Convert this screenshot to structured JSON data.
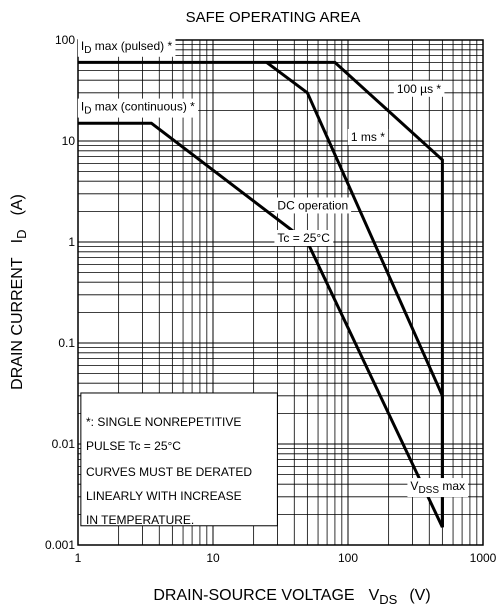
{
  "chart_data": {
    "type": "line",
    "title": "SAFE OPERATING AREA",
    "xlabel": "DRAIN-SOURCE VOLTAGE",
    "xlabel_sym": "V",
    "xlabel_sub": "DS",
    "xlabel_unit": "(V)",
    "ylabel": "DRAIN CURRENT",
    "ylabel_sym": "I",
    "ylabel_sub": "D",
    "ylabel_unit": "(A)",
    "xscale": "log",
    "yscale": "log",
    "xlim": [
      1,
      1000
    ],
    "ylim": [
      0.001,
      100
    ],
    "grid": true,
    "x_ticks": [
      {
        "value": 1,
        "label": "1"
      },
      {
        "value": 10,
        "label": "10"
      },
      {
        "value": 100,
        "label": "100"
      },
      {
        "value": 1000,
        "label": "1000"
      }
    ],
    "y_ticks": [
      {
        "value": 100,
        "label": "100"
      },
      {
        "value": 10,
        "label": "10"
      },
      {
        "value": 1,
        "label": "1"
      },
      {
        "value": 0.1,
        "label": "0.1"
      },
      {
        "value": 0.01,
        "label": "0.01"
      },
      {
        "value": 0.001,
        "label": "0.001"
      }
    ],
    "series": [
      {
        "key": "pulsed",
        "points": [
          [
            1,
            60
          ],
          [
            80,
            60
          ],
          [
            500,
            6.5
          ],
          [
            500,
            0.0015
          ]
        ]
      },
      {
        "key": "1ms",
        "points": [
          [
            25,
            60
          ],
          [
            50,
            30
          ],
          [
            500,
            0.03
          ],
          [
            500,
            0.0015
          ]
        ]
      },
      {
        "key": "dc",
        "points": [
          [
            1,
            15
          ],
          [
            3.5,
            15
          ],
          [
            50,
            1
          ],
          [
            500,
            0.0015
          ]
        ]
      }
    ],
    "annotations": [
      {
        "key": "id_pulsed",
        "sym": "I",
        "sub": "D",
        "text": " max (pulsed) *",
        "x": 1.05,
        "y": 80
      },
      {
        "key": "id_cont",
        "sym": "I",
        "sub": "D",
        "text": " max (continuous) *",
        "x": 1.05,
        "y": 20
      },
      {
        "key": "us100",
        "text": "100 µs *",
        "x": 230,
        "y": 30
      },
      {
        "key": "ms1",
        "text": "1 ms *",
        "x": 105,
        "y": 10
      },
      {
        "key": "dc1",
        "text": "DC operation",
        "x": 30,
        "y": 2.1
      },
      {
        "key": "dc2",
        "text": "Tc = 25°C",
        "x": 30,
        "y": 1.0
      },
      {
        "key": "vdss",
        "sym": "V",
        "sub": "DSS",
        "text": " max",
        "x": 290,
        "y": 0.0035
      }
    ],
    "note": [
      "*: SINGLE NONREPETITIVE",
      "PULSE    Tc = 25°C",
      "CURVES MUST BE DERATED",
      "LINEARLY WITH INCREASE",
      "IN TEMPERATURE."
    ]
  }
}
